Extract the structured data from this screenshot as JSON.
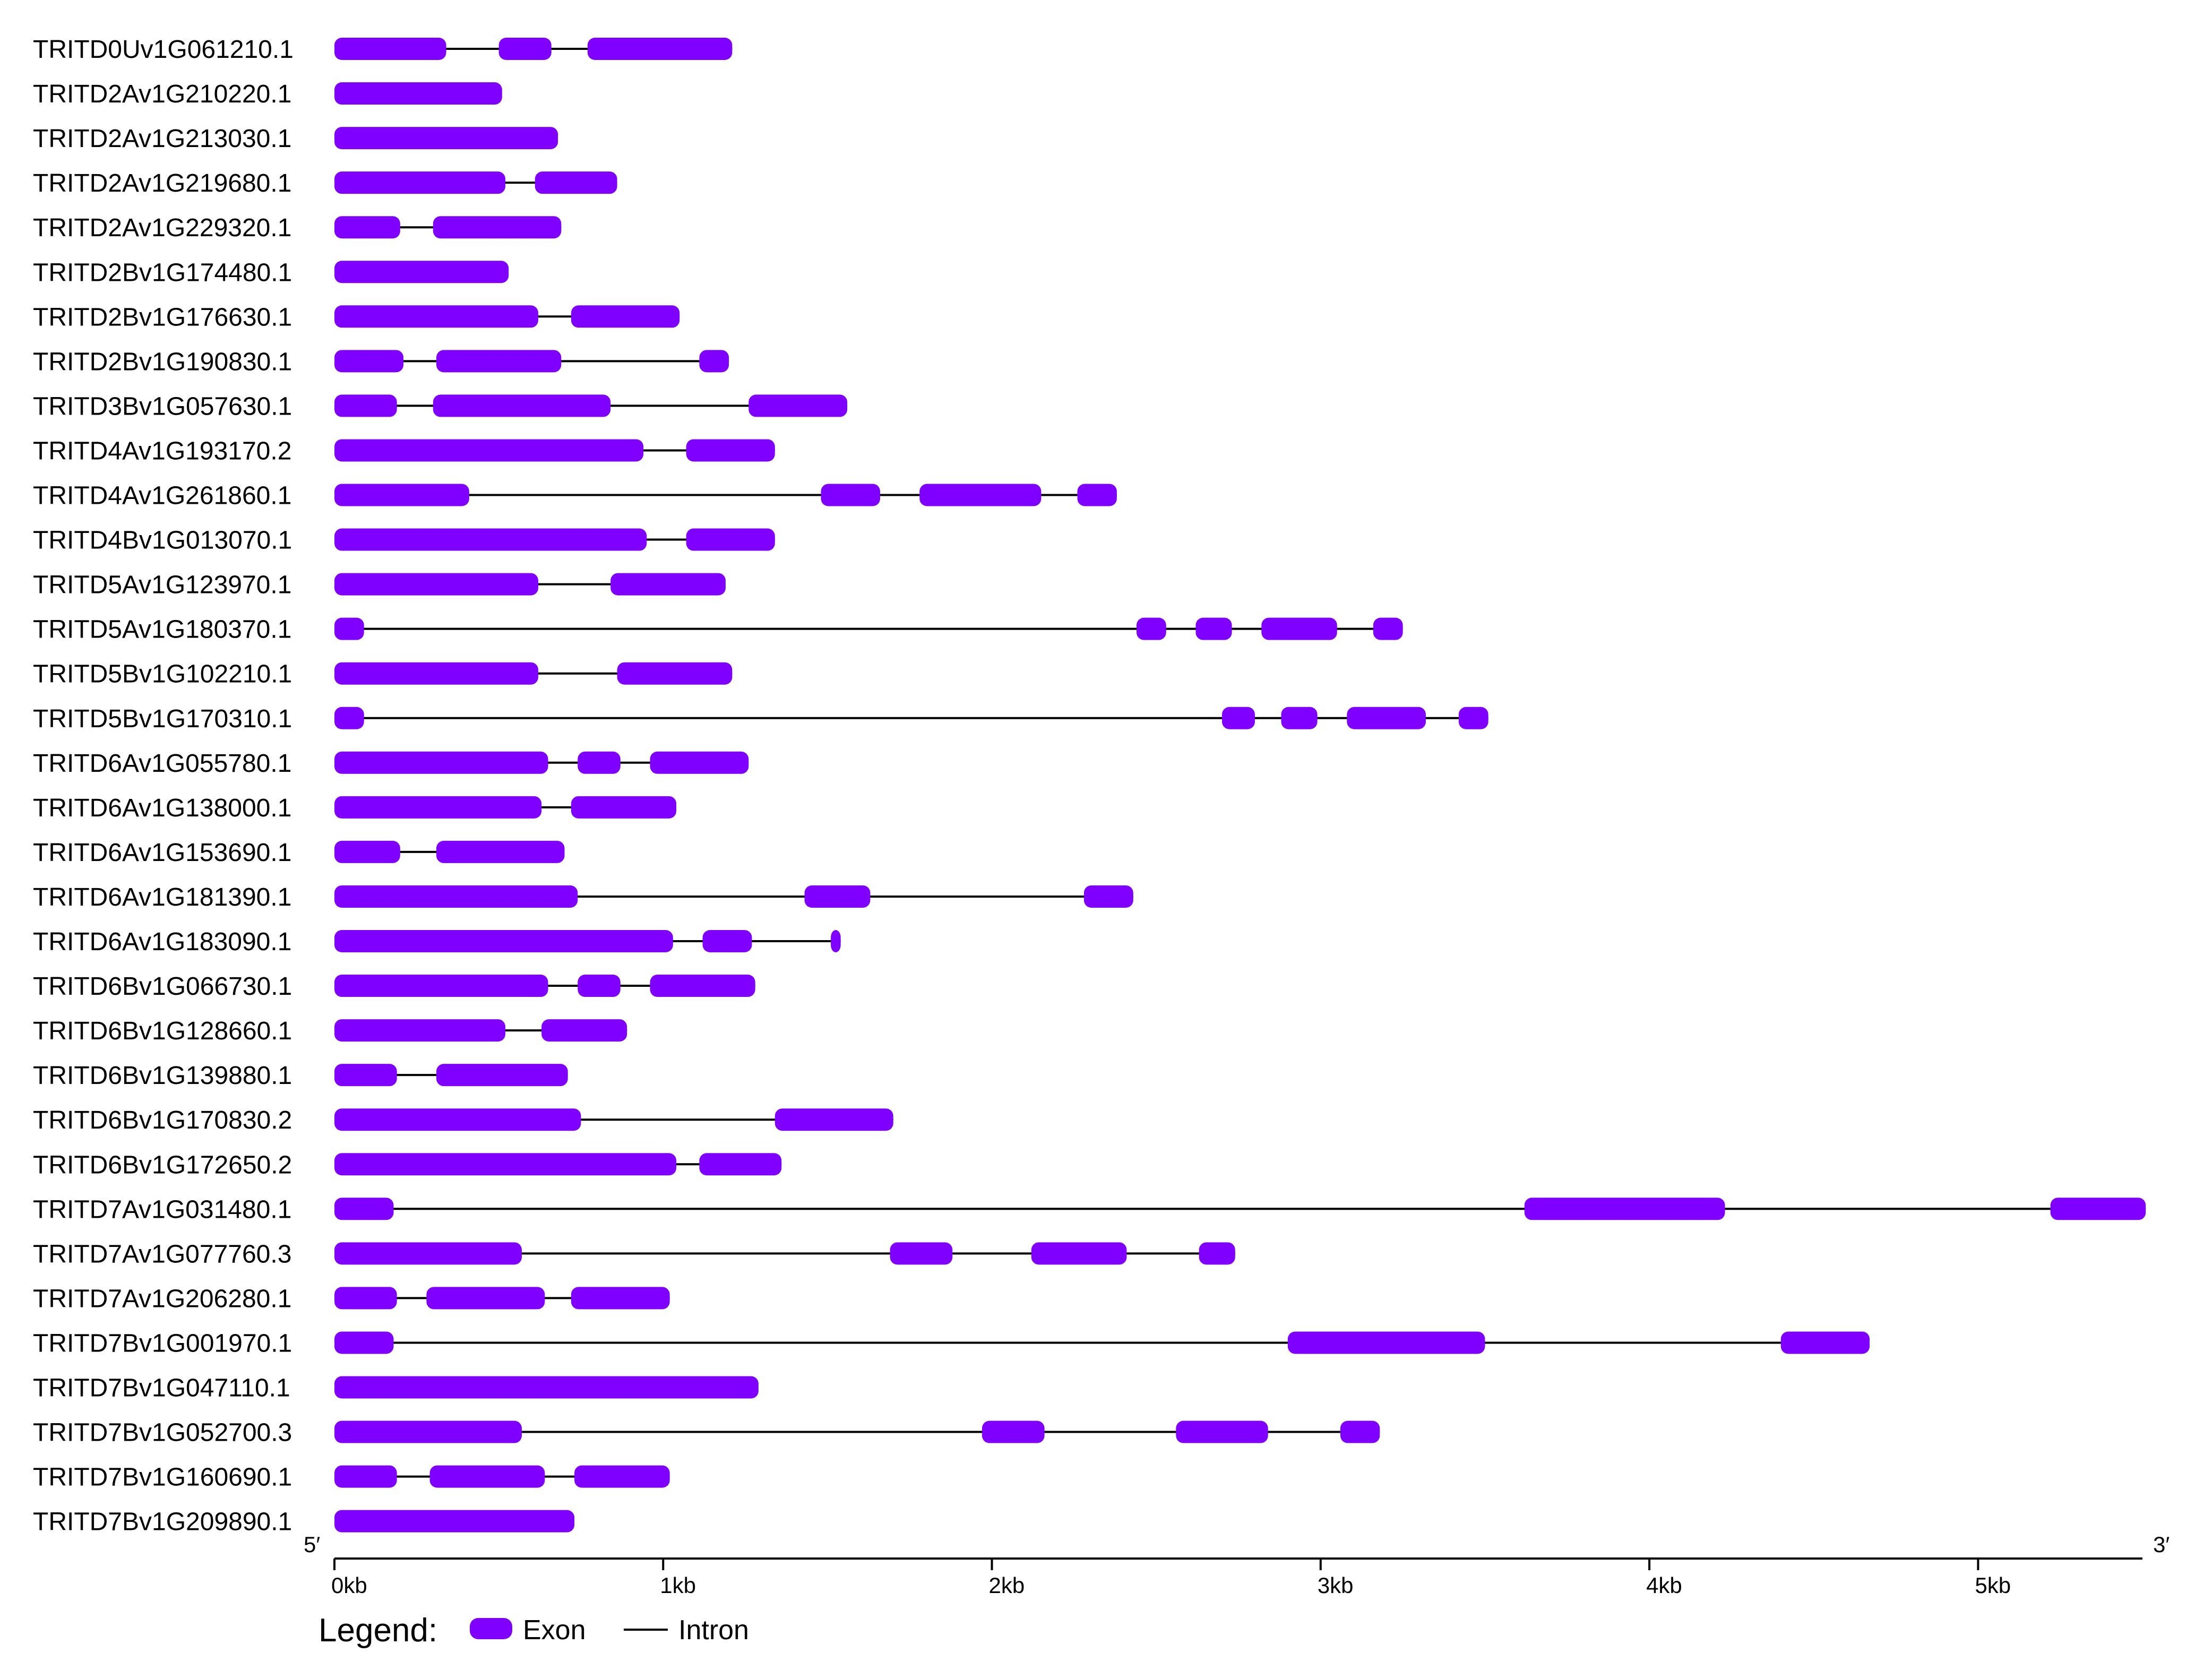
{
  "colors": {
    "exon": "#8000ff",
    "intron": "#000000",
    "axis": "#000000"
  },
  "axis": {
    "unit": "bp",
    "max": 5500,
    "ticks": [
      {
        "value": 0,
        "label": "0kb"
      },
      {
        "value": 1000,
        "label": "1kb"
      },
      {
        "value": 2000,
        "label": "2kb"
      },
      {
        "value": 3000,
        "label": "3kb"
      },
      {
        "value": 4000,
        "label": "4kb"
      },
      {
        "value": 5000,
        "label": "5kb"
      }
    ],
    "start_label": "5′",
    "end_label": "3′"
  },
  "legend": {
    "title": "Legend:",
    "exon_label": "Exon",
    "intron_label": "Intron"
  },
  "genes": [
    {
      "name": "TRITD0Uv1G061210.1",
      "exons": [
        [
          0,
          340
        ],
        [
          500,
          660
        ],
        [
          770,
          1210
        ]
      ]
    },
    {
      "name": "TRITD2Av1G210220.1",
      "exons": [
        [
          0,
          510
        ]
      ]
    },
    {
      "name": "TRITD2Av1G213030.1",
      "exons": [
        [
          0,
          680
        ]
      ]
    },
    {
      "name": "TRITD2Av1G219680.1",
      "exons": [
        [
          0,
          520
        ],
        [
          610,
          860
        ]
      ]
    },
    {
      "name": "TRITD2Av1G229320.1",
      "exons": [
        [
          0,
          200
        ],
        [
          300,
          690
        ]
      ]
    },
    {
      "name": "TRITD2Bv1G174480.1",
      "exons": [
        [
          0,
          530
        ]
      ]
    },
    {
      "name": "TRITD2Bv1G176630.1",
      "exons": [
        [
          0,
          620
        ],
        [
          720,
          1050
        ]
      ]
    },
    {
      "name": "TRITD2Bv1G190830.1",
      "exons": [
        [
          0,
          210
        ],
        [
          310,
          690
        ],
        [
          1110,
          1200
        ]
      ]
    },
    {
      "name": "TRITD3Bv1G057630.1",
      "exons": [
        [
          0,
          190
        ],
        [
          300,
          840
        ],
        [
          1260,
          1560
        ]
      ]
    },
    {
      "name": "TRITD4Av1G193170.2",
      "exons": [
        [
          0,
          940
        ],
        [
          1070,
          1340
        ]
      ]
    },
    {
      "name": "TRITD4Av1G261860.1",
      "exons": [
        [
          0,
          410
        ],
        [
          1480,
          1660
        ],
        [
          1780,
          2150
        ],
        [
          2260,
          2380
        ]
      ]
    },
    {
      "name": "TRITD4Bv1G013070.1",
      "exons": [
        [
          0,
          950
        ],
        [
          1070,
          1340
        ]
      ]
    },
    {
      "name": "TRITD5Av1G123970.1",
      "exons": [
        [
          0,
          620
        ],
        [
          840,
          1190
        ]
      ]
    },
    {
      "name": "TRITD5Av1G180370.1",
      "exons": [
        [
          0,
          90
        ],
        [
          2440,
          2530
        ],
        [
          2620,
          2730
        ],
        [
          2820,
          3050
        ],
        [
          3160,
          3250
        ]
      ]
    },
    {
      "name": "TRITD5Bv1G102210.1",
      "exons": [
        [
          0,
          620
        ],
        [
          860,
          1210
        ]
      ]
    },
    {
      "name": "TRITD5Bv1G170310.1",
      "exons": [
        [
          0,
          90
        ],
        [
          2700,
          2800
        ],
        [
          2880,
          2990
        ],
        [
          3080,
          3320
        ],
        [
          3420,
          3510
        ]
      ]
    },
    {
      "name": "TRITD6Av1G055780.1",
      "exons": [
        [
          0,
          650
        ],
        [
          740,
          870
        ],
        [
          960,
          1260
        ]
      ]
    },
    {
      "name": "TRITD6Av1G138000.1",
      "exons": [
        [
          0,
          630
        ],
        [
          720,
          1040
        ]
      ]
    },
    {
      "name": "TRITD6Av1G153690.1",
      "exons": [
        [
          0,
          200
        ],
        [
          310,
          700
        ]
      ]
    },
    {
      "name": "TRITD6Av1G181390.1",
      "exons": [
        [
          0,
          740
        ],
        [
          1430,
          1630
        ],
        [
          2280,
          2430
        ]
      ]
    },
    {
      "name": "TRITD6Av1G183090.1",
      "exons": [
        [
          0,
          1030
        ],
        [
          1120,
          1270
        ],
        [
          1510,
          1540
        ]
      ]
    },
    {
      "name": "TRITD6Bv1G066730.1",
      "exons": [
        [
          0,
          650
        ],
        [
          740,
          870
        ],
        [
          960,
          1280
        ]
      ]
    },
    {
      "name": "TRITD6Bv1G128660.1",
      "exons": [
        [
          0,
          520
        ],
        [
          630,
          890
        ]
      ]
    },
    {
      "name": "TRITD6Bv1G139880.1",
      "exons": [
        [
          0,
          190
        ],
        [
          310,
          710
        ]
      ]
    },
    {
      "name": "TRITD6Bv1G170830.2",
      "exons": [
        [
          0,
          750
        ],
        [
          1340,
          1700
        ]
      ]
    },
    {
      "name": "TRITD6Bv1G172650.2",
      "exons": [
        [
          0,
          1040
        ],
        [
          1110,
          1360
        ]
      ]
    },
    {
      "name": "TRITD7Av1G031480.1",
      "exons": [
        [
          0,
          180
        ],
        [
          3620,
          4230
        ],
        [
          5220,
          5510
        ]
      ]
    },
    {
      "name": "TRITD7Av1G077760.3",
      "exons": [
        [
          0,
          570
        ],
        [
          1690,
          1880
        ],
        [
          2120,
          2410
        ],
        [
          2630,
          2740
        ]
      ]
    },
    {
      "name": "TRITD7Av1G206280.1",
      "exons": [
        [
          0,
          190
        ],
        [
          280,
          640
        ],
        [
          720,
          1020
        ]
      ]
    },
    {
      "name": "TRITD7Bv1G001970.1",
      "exons": [
        [
          0,
          180
        ],
        [
          2900,
          3500
        ],
        [
          4400,
          4670
        ]
      ]
    },
    {
      "name": "TRITD7Bv1G047110.1",
      "exons": [
        [
          0,
          1290
        ]
      ]
    },
    {
      "name": "TRITD7Bv1G052700.3",
      "exons": [
        [
          0,
          570
        ],
        [
          1970,
          2160
        ],
        [
          2560,
          2840
        ],
        [
          3060,
          3180
        ]
      ]
    },
    {
      "name": "TRITD7Bv1G160690.1",
      "exons": [
        [
          0,
          190
        ],
        [
          290,
          640
        ],
        [
          730,
          1020
        ]
      ]
    },
    {
      "name": "TRITD7Bv1G209890.1",
      "exons": [
        [
          0,
          730
        ]
      ]
    }
  ]
}
